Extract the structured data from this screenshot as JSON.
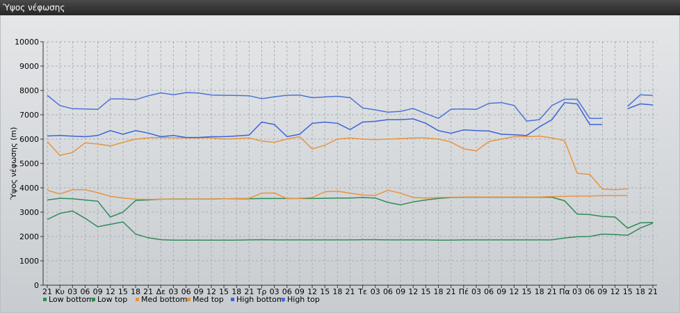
{
  "window": {
    "title": "Ύψος νέφωσης"
  },
  "chart_data": {
    "type": "line",
    "ylabel": "Ύψος νέφωσης (m)",
    "ylim": [
      0,
      10000
    ],
    "yticks": [
      0,
      1000,
      2000,
      3000,
      4000,
      5000,
      6000,
      7000,
      8000,
      9000,
      10000
    ],
    "grid": true,
    "legend_placement": "bottom-left",
    "categories": [
      "21",
      "Κυ",
      "03",
      "06",
      "09",
      "12",
      "15",
      "18",
      "21",
      "Δε",
      "03",
      "06",
      "09",
      "12",
      "15",
      "18",
      "21",
      "Τρ",
      "03",
      "06",
      "09",
      "12",
      "15",
      "18",
      "21",
      "Τε",
      "03",
      "06",
      "09",
      "12",
      "15",
      "18",
      "21",
      "Πέ",
      "03",
      "06",
      "09",
      "12",
      "15",
      "18",
      "21",
      "Πα",
      "03",
      "06",
      "09",
      "12",
      "15",
      "18",
      "21"
    ],
    "series": [
      {
        "name": "Low bottom",
        "color": "#2e8b57",
        "values": [
          2700,
          2950,
          3050,
          2750,
          2400,
          2500,
          2600,
          2100,
          1950,
          1870,
          1850,
          1850,
          1850,
          1850,
          1850,
          1850,
          1860,
          1870,
          1860,
          1860,
          1860,
          1860,
          1860,
          1860,
          1860,
          1870,
          1870,
          1860,
          1860,
          1860,
          1860,
          1850,
          1850,
          1860,
          1860,
          1860,
          1860,
          1860,
          1860,
          1860,
          1860,
          1940,
          1990,
          2000,
          2100,
          2080,
          2050,
          2350,
          2550
        ]
      },
      {
        "name": "Low top",
        "color": "#2e8b57",
        "values": [
          3500,
          3570,
          3550,
          3500,
          3450,
          2800,
          3000,
          3480,
          3500,
          3530,
          3540,
          3540,
          3540,
          3540,
          3550,
          3550,
          3550,
          3560,
          3560,
          3560,
          3560,
          3560,
          3570,
          3580,
          3580,
          3600,
          3580,
          3400,
          3300,
          3420,
          3500,
          3560,
          3600,
          3610,
          3610,
          3610,
          3610,
          3610,
          3610,
          3610,
          3610,
          3470,
          2920,
          2900,
          2820,
          2800,
          2340,
          2560,
          2580
        ]
      },
      {
        "name": "Med bottom",
        "color": "#e8943a",
        "values": [
          5900,
          5330,
          5450,
          5850,
          5800,
          5720,
          5870,
          6000,
          6050,
          6070,
          6050,
          6050,
          6050,
          6050,
          6000,
          6020,
          6050,
          5920,
          5870,
          6000,
          6100,
          5600,
          5750,
          6000,
          6050,
          6000,
          5980,
          6000,
          6020,
          6050,
          6050,
          6000,
          5880,
          5600,
          5520,
          5900,
          6000,
          6100,
          6100,
          6120,
          6050,
          5940,
          4600,
          4550,
          3950,
          3920,
          3960,
          null,
          null
        ]
      },
      {
        "name": "Med top",
        "color": "#e8943a",
        "values": [
          3900,
          3750,
          3920,
          3920,
          3800,
          3650,
          3580,
          3530,
          3520,
          3530,
          3530,
          3530,
          3540,
          3540,
          3550,
          3560,
          3570,
          3780,
          3790,
          3550,
          3570,
          3600,
          3840,
          3860,
          3780,
          3700,
          3690,
          3900,
          3780,
          3600,
          3580,
          3600,
          3610,
          3620,
          3620,
          3620,
          3620,
          3620,
          3620,
          3620,
          3640,
          3650,
          3660,
          3660,
          3680,
          3680,
          3680,
          null,
          null
        ]
      },
      {
        "name": "High bottom",
        "color": "#3a63d6",
        "values": [
          6130,
          6150,
          6120,
          6100,
          6150,
          6350,
          6200,
          6350,
          6250,
          6100,
          6150,
          6070,
          6070,
          6100,
          6100,
          6130,
          6170,
          6700,
          6600,
          6100,
          6200,
          6650,
          6700,
          6650,
          6390,
          6700,
          6730,
          6800,
          6800,
          6830,
          6650,
          6350,
          6240,
          6380,
          6350,
          6330,
          6200,
          6180,
          6150,
          6500,
          6800,
          7500,
          7450,
          6600,
          6600,
          null,
          7250,
          7450,
          7400
        ]
      },
      {
        "name": "High top",
        "color": "#4a73d6",
        "values": [
          7800,
          7380,
          7250,
          7240,
          7220,
          7650,
          7650,
          7620,
          7780,
          7900,
          7820,
          7910,
          7890,
          7810,
          7800,
          7790,
          7780,
          7660,
          7740,
          7800,
          7810,
          7700,
          7730,
          7760,
          7700,
          7280,
          7200,
          7110,
          7140,
          7260,
          7050,
          6850,
          7230,
          7240,
          7220,
          7470,
          7500,
          7380,
          6740,
          6800,
          7380,
          7640,
          7640,
          6850,
          6850,
          null,
          7350,
          7820,
          7790
        ]
      }
    ]
  }
}
